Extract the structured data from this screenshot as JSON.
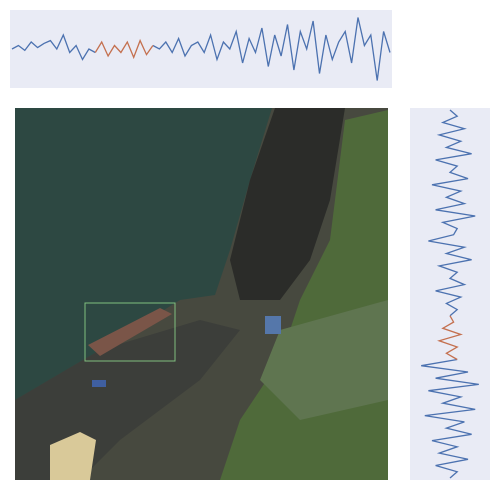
{
  "chart_data": [
    {
      "type": "line",
      "orientation": "horizontal",
      "ylim": [
        0,
        1
      ],
      "series": [
        {
          "color": "#4c72b0",
          "values": [
            0.5,
            0.55,
            0.48,
            0.6,
            0.52,
            0.58,
            0.62,
            0.5,
            0.7,
            0.45,
            0.55,
            0.35,
            0.5,
            0.45,
            null,
            null,
            null,
            null,
            null,
            null,
            null,
            null,
            0.55,
            0.5,
            0.6,
            0.45,
            0.65,
            0.4,
            0.55,
            0.6,
            0.45,
            0.7,
            0.35,
            0.6,
            0.5,
            0.75,
            0.3,
            0.65,
            0.45,
            0.8,
            0.25,
            0.7,
            0.4,
            0.85,
            0.2,
            0.75,
            0.5,
            0.9,
            0.15,
            0.7,
            0.35,
            0.6,
            0.75,
            0.3,
            0.95,
            0.55,
            0.7,
            0.05,
            0.75,
            0.45
          ]
        },
        {
          "color": "#c4704f",
          "values": [
            null,
            null,
            null,
            null,
            null,
            null,
            null,
            null,
            null,
            null,
            null,
            null,
            null,
            0.45,
            0.6,
            0.4,
            0.55,
            0.45,
            0.6,
            0.38,
            0.62,
            0.42,
            0.55,
            null,
            null,
            null,
            null,
            null,
            null,
            null,
            null,
            null,
            null,
            null,
            null,
            null,
            null,
            null,
            null,
            null,
            null,
            null,
            null,
            null,
            null,
            null,
            null,
            null,
            null,
            null,
            null,
            null,
            null,
            null,
            null,
            null,
            null,
            null,
            null,
            null
          ]
        }
      ]
    },
    {
      "type": "line",
      "orientation": "vertical",
      "ylim": [
        0,
        1
      ],
      "series": [
        {
          "color": "#4c72b0",
          "values": [
            0.5,
            0.6,
            0.4,
            0.7,
            0.35,
            0.65,
            0.45,
            0.8,
            0.3,
            0.6,
            0.5,
            0.75,
            0.25,
            0.65,
            0.45,
            0.7,
            0.3,
            0.85,
            0.4,
            0.6,
            0.55,
            0.2,
            0.7,
            0.45,
            0.8,
            0.35,
            0.6,
            0.5,
            0.7,
            0.3,
            0.65,
            0.45,
            0.6,
            0.5,
            null,
            null,
            null,
            null,
            null,
            null,
            0.6,
            0.1,
            0.75,
            0.3,
            0.9,
            0.2,
            0.65,
            0.4,
            0.85,
            0.15,
            0.7,
            0.45,
            0.8,
            0.25,
            0.6,
            0.35,
            0.75,
            0.3,
            0.6,
            0.5
          ]
        },
        {
          "color": "#c4704f",
          "values": [
            null,
            null,
            null,
            null,
            null,
            null,
            null,
            null,
            null,
            null,
            null,
            null,
            null,
            null,
            null,
            null,
            null,
            null,
            null,
            null,
            null,
            null,
            null,
            null,
            null,
            null,
            null,
            null,
            null,
            null,
            null,
            null,
            null,
            0.5,
            0.55,
            0.4,
            0.65,
            0.35,
            0.6,
            0.45,
            0.6,
            null,
            null,
            null,
            null,
            null,
            null,
            null,
            null,
            null,
            null,
            null,
            null,
            null,
            null,
            null,
            null,
            null,
            null,
            null
          ]
        }
      ]
    }
  ]
}
